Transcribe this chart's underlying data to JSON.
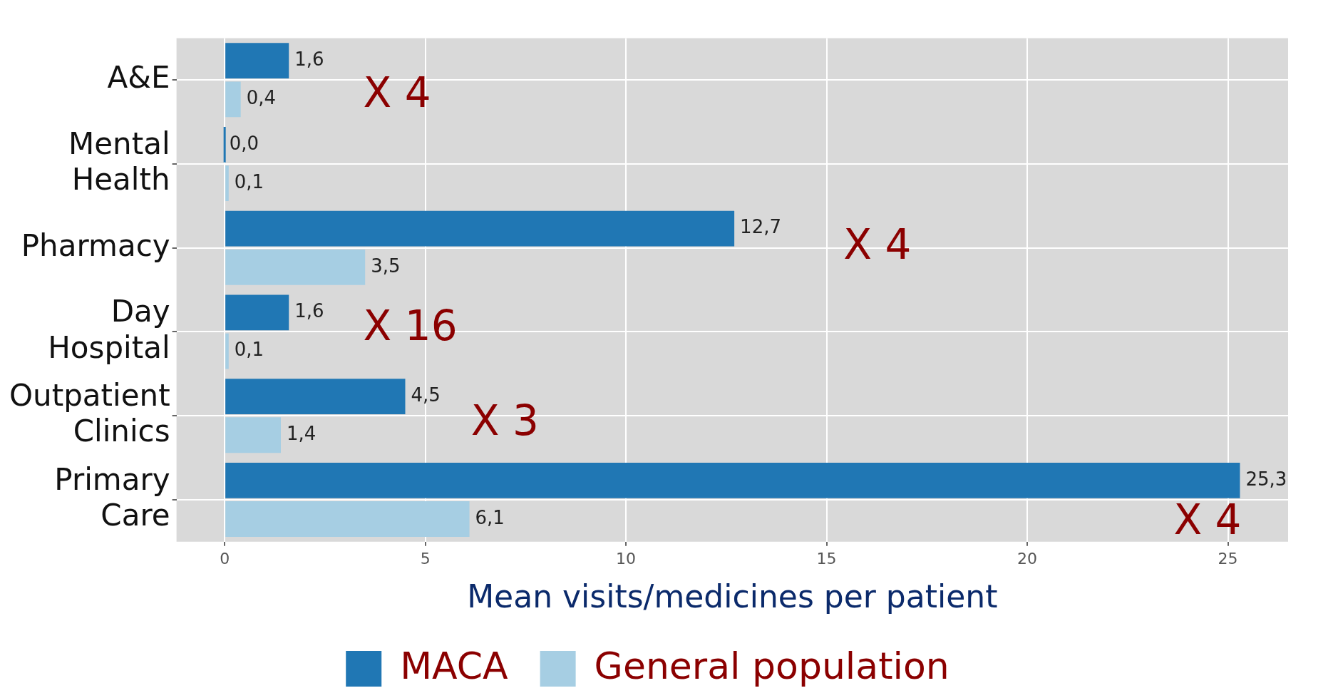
{
  "chart_data": {
    "type": "bar",
    "orientation": "horizontal",
    "xlabel": "Mean visits/medicines per patient",
    "categories": [
      "A&E",
      "Mental Health",
      "Pharmacy",
      "Day Hospital",
      "Outpatient Clinics",
      "Primary Care"
    ],
    "series": [
      {
        "name": "MACA",
        "color": "#2077b4",
        "values": [
          1.6,
          0.0,
          12.7,
          1.6,
          4.5,
          25.3
        ],
        "value_labels": [
          "1,6",
          "0,0",
          "12,7",
          "1,6",
          "4,5",
          "25,3"
        ]
      },
      {
        "name": "General population",
        "color": "#a6cee3",
        "values": [
          0.4,
          0.1,
          3.5,
          0.1,
          1.4,
          6.1
        ],
        "value_labels": [
          "0,4",
          "0,1",
          "3,5",
          "0,1",
          "1,4",
          "6,1"
        ]
      }
    ],
    "xlim": [
      -1.2,
      26.5
    ],
    "xticks": [
      0,
      5,
      10,
      15,
      20,
      25
    ],
    "grid": true,
    "legend": "bottom",
    "annotations": [
      "X 4",
      "X 4",
      "X 16",
      "X 3",
      "X 4"
    ]
  }
}
